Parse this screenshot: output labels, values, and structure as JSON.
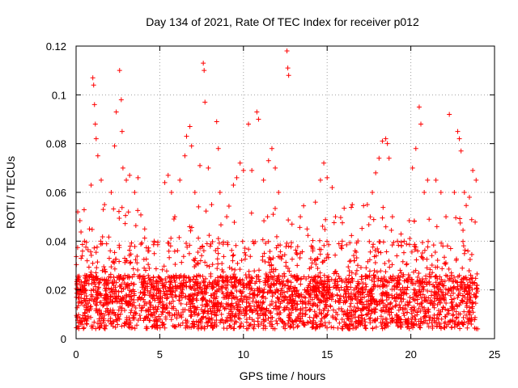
{
  "chart_data": {
    "type": "scatter",
    "title": "Day 134 of 2021, Rate Of TEC Index for receiver p012",
    "xlabel": "GPS time / hours",
    "ylabel": "ROTI / TECUs",
    "xlim": [
      0,
      25
    ],
    "ylim": [
      0,
      0.12
    ],
    "x_ticks": [
      0,
      5,
      10,
      15,
      20,
      25
    ],
    "y_ticks": [
      0,
      0.02,
      0.04,
      0.06,
      0.08,
      0.1,
      0.12
    ],
    "x_tick_labels": [
      "0",
      "5",
      "10",
      "15",
      "20",
      "25"
    ],
    "y_tick_labels": [
      "0",
      "0.02",
      "0.04",
      "0.06",
      "0.08",
      "0.1",
      "0.12"
    ],
    "grid": true,
    "marker": "plus",
    "color": "#ff0000",
    "x_extent": [
      0,
      24
    ],
    "points": [
      [
        0.1,
        0.052
      ],
      [
        0.3,
        0.033
      ],
      [
        0.5,
        0.04
      ],
      [
        0.8,
        0.045
      ],
      [
        0.9,
        0.063
      ],
      [
        1.0,
        0.107
      ],
      [
        1.05,
        0.104
      ],
      [
        1.1,
        0.096
      ],
      [
        1.15,
        0.088
      ],
      [
        1.2,
        0.082
      ],
      [
        1.3,
        0.075
      ],
      [
        1.5,
        0.065
      ],
      [
        1.7,
        0.055
      ],
      [
        2.1,
        0.06
      ],
      [
        2.3,
        0.079
      ],
      [
        2.4,
        0.093
      ],
      [
        2.6,
        0.11
      ],
      [
        2.7,
        0.098
      ],
      [
        2.75,
        0.085
      ],
      [
        2.8,
        0.07
      ],
      [
        3.0,
        0.065
      ],
      [
        3.2,
        0.067
      ],
      [
        3.5,
        0.06
      ],
      [
        3.7,
        0.066
      ],
      [
        4.1,
        0.045
      ],
      [
        5.3,
        0.064
      ],
      [
        5.5,
        0.067
      ],
      [
        5.7,
        0.06
      ],
      [
        5.9,
        0.05
      ],
      [
        6.2,
        0.065
      ],
      [
        6.5,
        0.075
      ],
      [
        6.6,
        0.083
      ],
      [
        6.8,
        0.087
      ],
      [
        6.9,
        0.079
      ],
      [
        7.1,
        0.06
      ],
      [
        7.4,
        0.071
      ],
      [
        7.6,
        0.113
      ],
      [
        7.65,
        0.11
      ],
      [
        7.7,
        0.097
      ],
      [
        7.9,
        0.07
      ],
      [
        8.1,
        0.055
      ],
      [
        8.4,
        0.089
      ],
      [
        8.5,
        0.078
      ],
      [
        8.6,
        0.06
      ],
      [
        9.0,
        0.05
      ],
      [
        9.4,
        0.063
      ],
      [
        9.6,
        0.066
      ],
      [
        9.8,
        0.072
      ],
      [
        10.0,
        0.069
      ],
      [
        10.3,
        0.088
      ],
      [
        10.5,
        0.069
      ],
      [
        10.8,
        0.093
      ],
      [
        10.9,
        0.09
      ],
      [
        11.2,
        0.065
      ],
      [
        11.5,
        0.073
      ],
      [
        11.7,
        0.078
      ],
      [
        11.9,
        0.07
      ],
      [
        12.1,
        0.06
      ],
      [
        12.6,
        0.118
      ],
      [
        12.65,
        0.111
      ],
      [
        12.7,
        0.108
      ],
      [
        12.9,
        0.047
      ],
      [
        13.4,
        0.05
      ],
      [
        13.8,
        0.045
      ],
      [
        14.3,
        0.056
      ],
      [
        14.6,
        0.065
      ],
      [
        14.8,
        0.072
      ],
      [
        15.0,
        0.066
      ],
      [
        15.3,
        0.062
      ],
      [
        15.5,
        0.05
      ],
      [
        15.9,
        0.04
      ],
      [
        16.5,
        0.055
      ],
      [
        17.4,
        0.055
      ],
      [
        17.7,
        0.06
      ],
      [
        17.9,
        0.068
      ],
      [
        18.1,
        0.074
      ],
      [
        18.3,
        0.081
      ],
      [
        18.5,
        0.082
      ],
      [
        18.6,
        0.08
      ],
      [
        18.7,
        0.074
      ],
      [
        18.9,
        0.05
      ],
      [
        19.2,
        0.04
      ],
      [
        19.6,
        0.04
      ],
      [
        20.1,
        0.07
      ],
      [
        20.3,
        0.078
      ],
      [
        20.5,
        0.095
      ],
      [
        20.6,
        0.088
      ],
      [
        20.8,
        0.06
      ],
      [
        21.0,
        0.065
      ],
      [
        21.5,
        0.065
      ],
      [
        21.8,
        0.06
      ],
      [
        22.1,
        0.05
      ],
      [
        22.3,
        0.092
      ],
      [
        22.6,
        0.06
      ],
      [
        22.8,
        0.085
      ],
      [
        22.9,
        0.082
      ],
      [
        23.0,
        0.077
      ],
      [
        23.2,
        0.06
      ],
      [
        23.5,
        0.058
      ],
      [
        23.7,
        0.069
      ],
      [
        23.9,
        0.065
      ]
    ]
  }
}
